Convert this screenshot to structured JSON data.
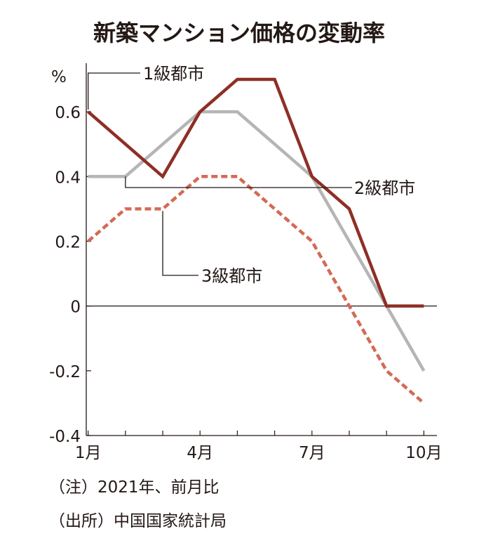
{
  "chart_data": {
    "type": "line",
    "title": "新築マンション価格の変動率",
    "unit": "%",
    "x": [
      1,
      2,
      3,
      4,
      5,
      6,
      7,
      8,
      9,
      10
    ],
    "x_tick_labels": [
      {
        "x": 1,
        "label": "1月"
      },
      {
        "x": 4,
        "label": "4月"
      },
      {
        "x": 7,
        "label": "7月"
      },
      {
        "x": 10,
        "label": "10月"
      }
    ],
    "xlim": [
      0.95,
      10.35
    ],
    "ylim": [
      -0.4,
      0.75
    ],
    "y_ticks": [
      {
        "value": 0.6,
        "label": "0.6"
      },
      {
        "value": 0.4,
        "label": "0.4"
      },
      {
        "value": 0.2,
        "label": "0.2"
      },
      {
        "value": 0,
        "label": "0"
      },
      {
        "value": -0.2,
        "label": "-0.2"
      },
      {
        "value": -0.4,
        "label": "-0.4"
      }
    ],
    "grid": false,
    "series": [
      {
        "name": "1級都市",
        "color": "#8e2f25",
        "style": "solid",
        "values": [
          0.6,
          0.5,
          0.4,
          0.6,
          0.7,
          0.7,
          0.4,
          0.3,
          0.0,
          0.0
        ]
      },
      {
        "name": "2級都市",
        "color": "#b5b5b5",
        "style": "solid",
        "values": [
          0.4,
          0.4,
          0.5,
          0.6,
          0.6,
          0.5,
          0.4,
          0.2,
          0.0,
          -0.2
        ]
      },
      {
        "name": "3級都市",
        "color": "#d46a56",
        "style": "dashed",
        "values": [
          0.2,
          0.3,
          0.3,
          0.4,
          0.4,
          0.3,
          0.2,
          0.0,
          -0.2,
          -0.3
        ]
      }
    ],
    "notes": [
      "（注）2021年、前月比",
      "（出所）中国国家統計局"
    ]
  }
}
